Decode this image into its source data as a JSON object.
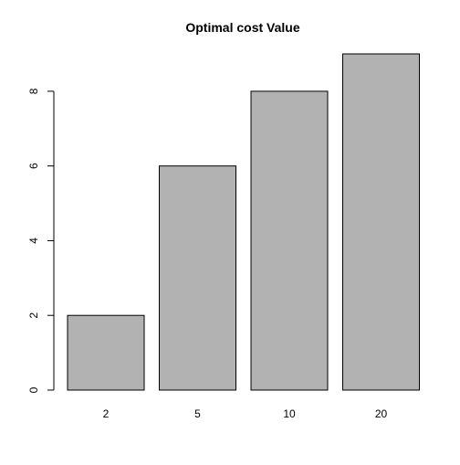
{
  "chart_data": {
    "type": "bar",
    "title": "Optimal cost Value",
    "xlabel": "",
    "ylabel": "",
    "categories": [
      "2",
      "5",
      "10",
      "20"
    ],
    "values": [
      2,
      6,
      8,
      9
    ],
    "ylim": [
      0,
      9
    ],
    "yticks": [
      0,
      2,
      4,
      6,
      8
    ],
    "grid": false,
    "bar_color": "#b2b2b2",
    "bar_border_color": "#000000"
  }
}
